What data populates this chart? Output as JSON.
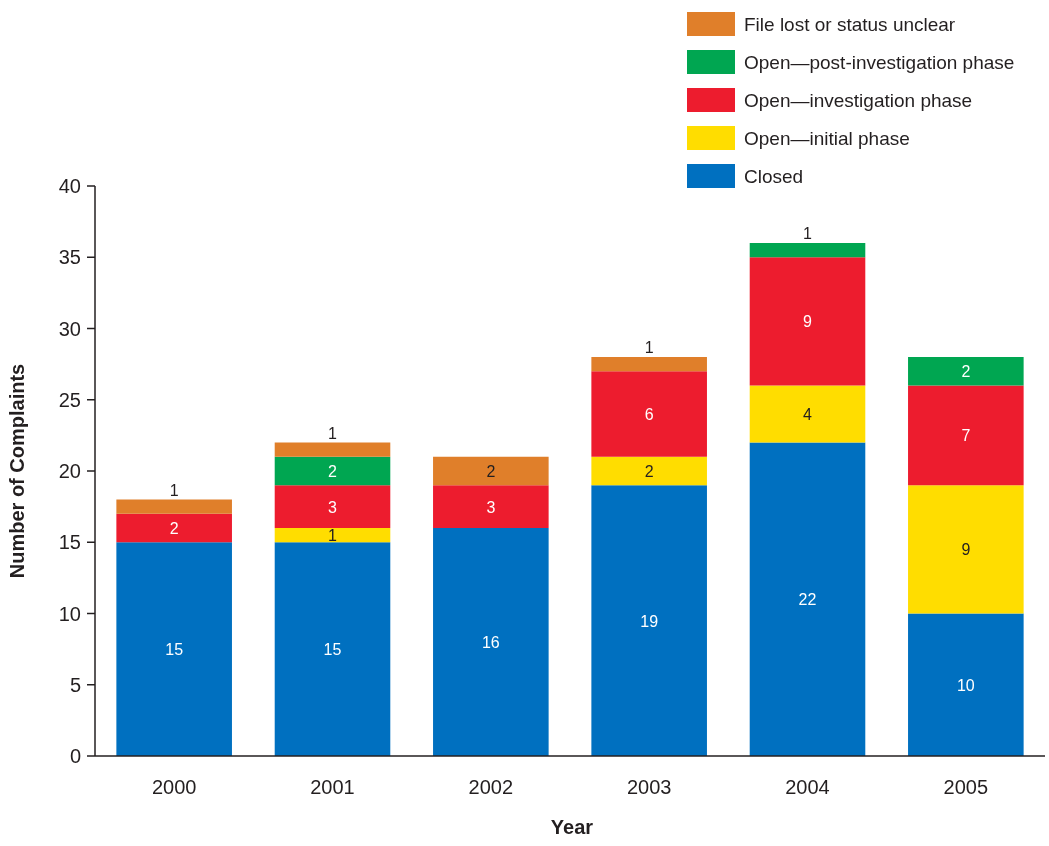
{
  "chart_data": {
    "type": "bar",
    "stacked": true,
    "xlabel": "Year",
    "ylabel": "Number of Complaints",
    "categories": [
      "2000",
      "2001",
      "2002",
      "2003",
      "2004",
      "2005"
    ],
    "ylim": [
      0,
      40
    ],
    "yticks": [
      0,
      5,
      10,
      15,
      20,
      25,
      30,
      35,
      40
    ],
    "grid": false,
    "legend": "top right",
    "data_labels": true,
    "series": [
      {
        "name": "Closed",
        "color": "#0070c0",
        "values": [
          15,
          15,
          16,
          19,
          22,
          10
        ]
      },
      {
        "name": "Open—initial phase",
        "color": "#ffdd00",
        "values": [
          null,
          1,
          null,
          2,
          4,
          9
        ]
      },
      {
        "name": "Open—investigation phase",
        "color": "#ed1c2e",
        "values": [
          2,
          3,
          3,
          6,
          9,
          7
        ]
      },
      {
        "name": "Open—post-investigation phase",
        "color": "#00a651",
        "values": [
          null,
          2,
          null,
          null,
          1,
          2
        ]
      },
      {
        "name": "File lost or status unclear",
        "color": "#e07f2a",
        "values": [
          1,
          1,
          2,
          1,
          null,
          null
        ]
      }
    ]
  }
}
